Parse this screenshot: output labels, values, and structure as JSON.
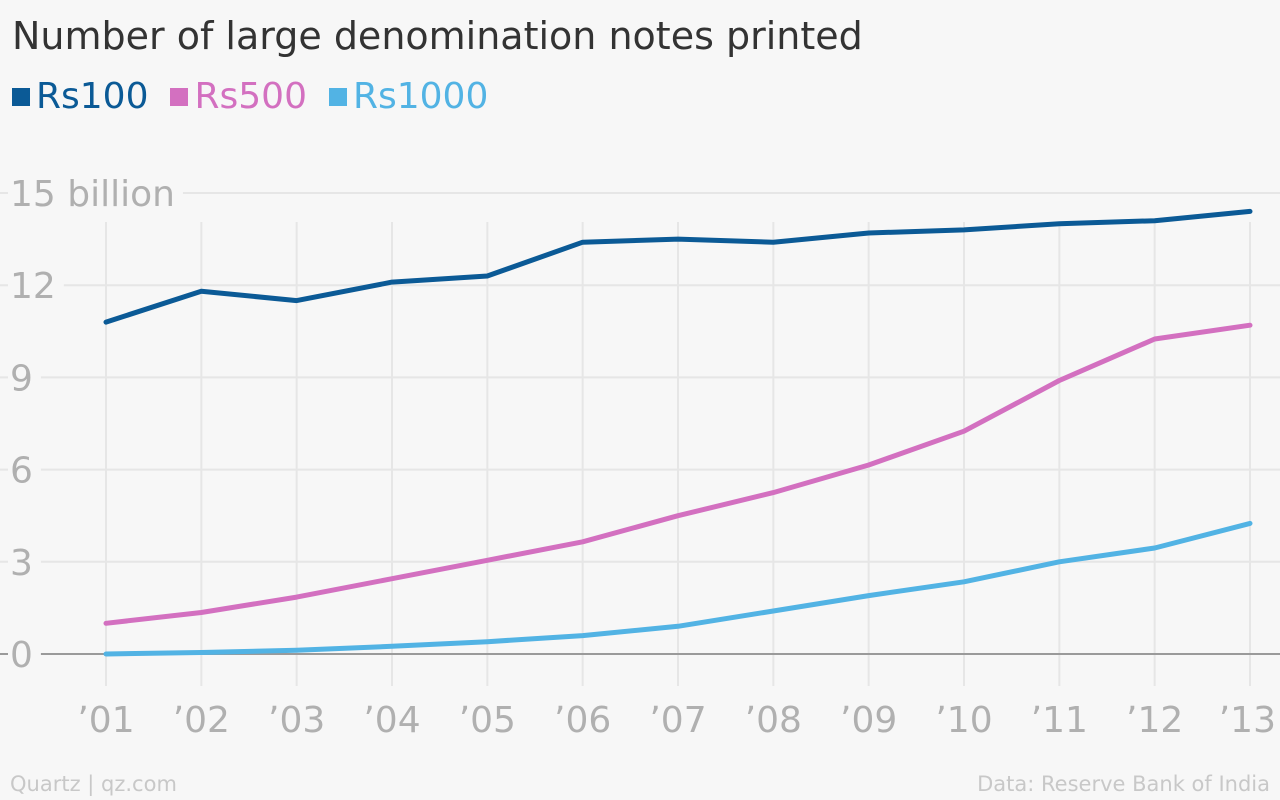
{
  "chart_data": {
    "type": "line",
    "title": "Number of large denomination notes printed",
    "categories": [
      "’01",
      "’02",
      "’03",
      "’04",
      "’05",
      "’06",
      "’07",
      "’08",
      "’09",
      "’10",
      "’11",
      "’12",
      "’13"
    ],
    "y_ticks": [
      {
        "value": 0,
        "label": "0"
      },
      {
        "value": 3,
        "label": "3"
      },
      {
        "value": 6,
        "label": "6"
      },
      {
        "value": 9,
        "label": "9"
      },
      {
        "value": 12,
        "label": "12"
      },
      {
        "value": 15,
        "label": "15 billion"
      }
    ],
    "ylim": [
      0,
      15
    ],
    "grid": true,
    "legend_position": "top-left",
    "series": [
      {
        "name": "Rs100",
        "color": "#0b5a96",
        "values": [
          10.8,
          11.8,
          11.5,
          12.1,
          12.3,
          13.4,
          13.5,
          13.4,
          13.7,
          13.8,
          14.0,
          14.1,
          14.4
        ]
      },
      {
        "name": "Rs500",
        "color": "#d370c0",
        "values": [
          1.0,
          1.35,
          1.85,
          2.45,
          3.05,
          3.65,
          4.5,
          5.25,
          6.15,
          7.25,
          8.9,
          10.25,
          10.7
        ]
      },
      {
        "name": "Rs1000",
        "color": "#52b3e4",
        "values": [
          0.0,
          0.05,
          0.12,
          0.25,
          0.4,
          0.6,
          0.9,
          1.4,
          1.9,
          2.35,
          3.0,
          3.45,
          4.25
        ]
      }
    ]
  },
  "footer": {
    "source_left": "Quartz | qz.com",
    "source_right": "Data: Reserve Bank of India"
  }
}
